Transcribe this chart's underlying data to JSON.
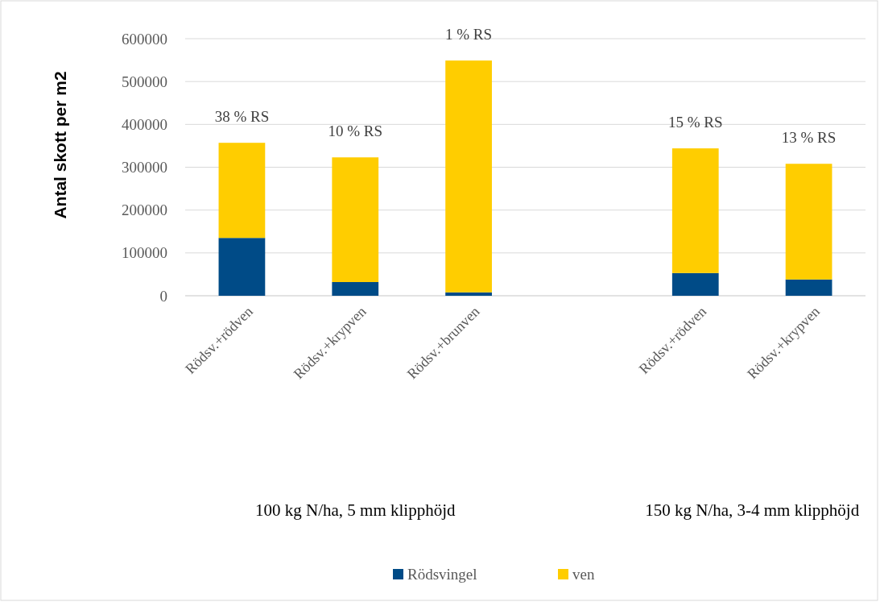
{
  "chart_data": {
    "type": "bar",
    "stacked": true,
    "ylabel": "Antal skott per m2",
    "categories": [
      "Rödsv.+rödven",
      "Rödsv.+krypven",
      "Rödsv.+brunven",
      null,
      "Rödsv.+rödven",
      "Rödsv.+krypven"
    ],
    "series": [
      {
        "name": "Rödsvingel",
        "color": "#004b87",
        "values": [
          135000,
          32000,
          8000,
          null,
          53000,
          38000
        ]
      },
      {
        "name": "ven",
        "color": "#ffcd00",
        "values": [
          222000,
          291000,
          541000,
          null,
          291000,
          270000
        ]
      }
    ],
    "ylim": [
      0,
      600000
    ],
    "yticks": [
      0,
      100000,
      200000,
      300000,
      400000,
      500000,
      600000
    ],
    "grid": "y",
    "legend": "bottom",
    "annotations": [
      "38 % RS",
      "10 % RS",
      "1 % RS",
      "15 % RS",
      "13 % RS",
      "100 kg N/ha, 5 mm klipphöjd",
      "150 kg N/ha, 3-4 mm klipphöjd"
    ]
  }
}
